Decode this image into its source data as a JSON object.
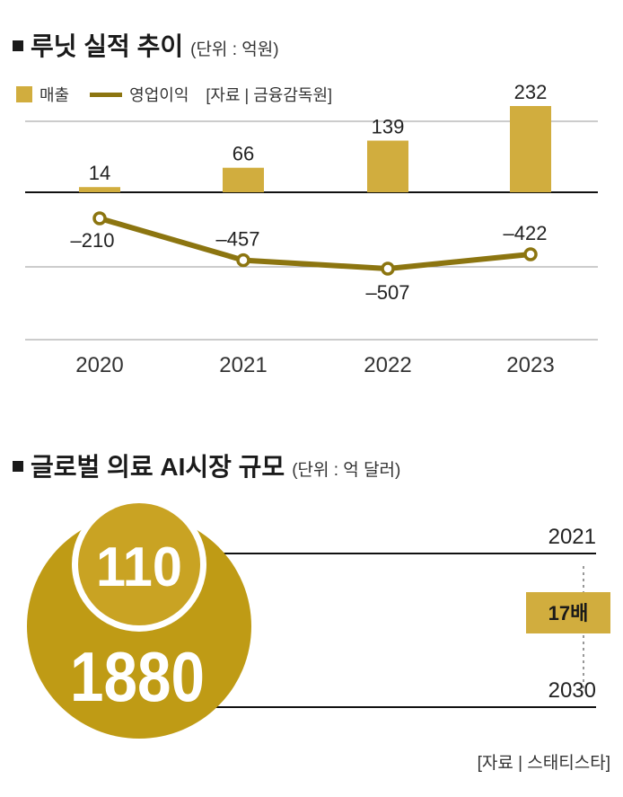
{
  "colors": {
    "bar": "#d1ad3e",
    "line": "#8c7510",
    "axis": "#111111",
    "grid": "#9a9a9a",
    "circle_big": "#bf9b15",
    "circle_small": "#c9a323",
    "badge": "#d1ad3e"
  },
  "chart1": {
    "title": "루닛 실적 추이",
    "unit": "(단위 : 억원)",
    "legend": {
      "bar": "매출",
      "line": "영업이익"
    },
    "source": "[자료 | 금융감독원]"
  },
  "chart2": {
    "title": "글로벌 의료 AI시장 규모",
    "unit": "(단위 : 억 달러)",
    "badge": "17배",
    "source": "[자료 | 스태티스타]"
  },
  "chart_data": [
    {
      "type": "bar",
      "title": "루닛 실적 추이",
      "categories": [
        "2020",
        "2021",
        "2022",
        "2023"
      ],
      "series": [
        {
          "name": "매출",
          "type": "bar",
          "values": [
            14,
            66,
            139,
            232
          ],
          "labels": [
            "14",
            "66",
            "139",
            "232"
          ]
        },
        {
          "name": "영업이익",
          "type": "line",
          "values": [
            -210,
            -457,
            -507,
            -422
          ],
          "labels": [
            "–210",
            "–457",
            "–507",
            "–422"
          ]
        }
      ],
      "ylim": [
        -600,
        250
      ],
      "grid": true,
      "legend": "top-left"
    },
    {
      "type": "bubble",
      "title": "글로벌 의료 AI시장 규모",
      "points": [
        {
          "year": "2021",
          "value": 110,
          "label": "110"
        },
        {
          "year": "2030",
          "value": 1880,
          "label": "1880"
        }
      ],
      "annotation": "17배"
    }
  ]
}
